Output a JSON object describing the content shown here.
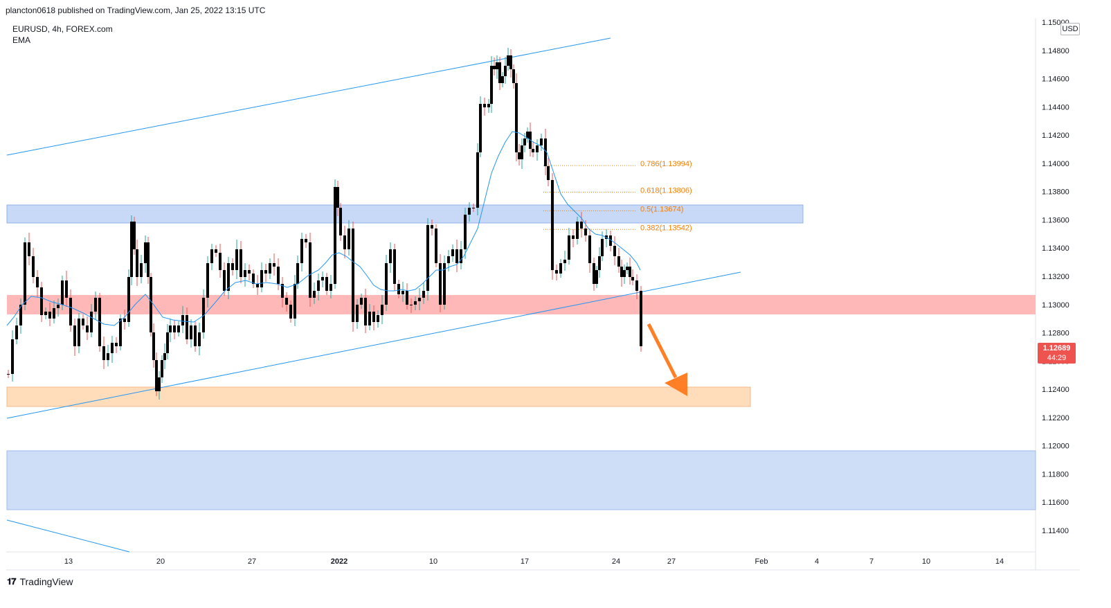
{
  "header": {
    "published_line": "plancton0618 published on TradingView.com, Jan 25, 2022 13:15 UTC",
    "symbol_line": "EURUSD, 4h, FOREX.com",
    "indicator": "EMA"
  },
  "price_axis": {
    "currency": "USD",
    "current_price": "1.12689",
    "countdown": "44:29"
  },
  "footer": {
    "logo_text": "TradingView"
  },
  "colors": {
    "ema_line": "#2196f3",
    "channel_line": "#2196f3",
    "fib_text": "#f57c00",
    "bull_candle": "#26a69a",
    "bear_candle": "#ef5350",
    "candle_body": "#000000",
    "resistance_zone": "#ff9e9e",
    "support_zone_blue": "#b8cff5",
    "target_zone": "#ffd8b0",
    "arrow": "#ff7f27",
    "price_tag": "#ef5350"
  },
  "chart_data": {
    "type": "candlestick",
    "symbol": "EURUSD",
    "timeframe": "4h",
    "title": "EURUSD, 4h, FOREX.com",
    "ylim": [
      1.1128,
      1.1505
    ],
    "y_ticks": [
      "1.15000",
      "1.14800",
      "1.14600",
      "1.14400",
      "1.14200",
      "1.14000",
      "1.13800",
      "1.13600",
      "1.13400",
      "1.13200",
      "1.13000",
      "1.12800",
      "1.12600",
      "1.12400",
      "1.12200",
      "1.12000",
      "1.11800",
      "1.11600",
      "1.11400"
    ],
    "x_ticks": [
      "13",
      "20",
      "27",
      "2022",
      "10",
      "17",
      "24",
      "27",
      "Feb",
      "4",
      "7",
      "10",
      "14"
    ],
    "x_ticks_bold": [
      "2022"
    ],
    "fib_levels": [
      {
        "label": "0.786(1.13994)",
        "value": 1.13994
      },
      {
        "label": "0.618(1.13806)",
        "value": 1.13806
      },
      {
        "label": "0.5(1.13674)",
        "value": 1.13674
      },
      {
        "label": "0.382(1.13542)",
        "value": 1.13542
      }
    ],
    "zones": [
      {
        "name": "resistance-blue",
        "from": 1.13575,
        "to": 1.137
      },
      {
        "name": "resistance-red",
        "from": 1.1293,
        "to": 1.1306
      },
      {
        "name": "target-orange",
        "from": 1.1228,
        "to": 1.12415
      },
      {
        "name": "support-blue-lower",
        "from": 1.11545,
        "to": 1.1196
      }
    ],
    "approx_candles_count": 180,
    "approx_high": 1.14822,
    "approx_low": 1.12214,
    "last_close": 1.12689
  }
}
